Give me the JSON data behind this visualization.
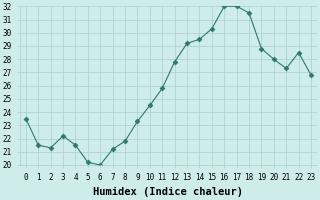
{
  "xlabel": "Humidex (Indice chaleur)",
  "ylabel": "",
  "x": [
    0,
    1,
    2,
    3,
    4,
    5,
    6,
    7,
    8,
    9,
    10,
    11,
    12,
    13,
    14,
    15,
    16,
    17,
    18,
    19,
    20,
    21,
    22,
    23
  ],
  "y": [
    23.5,
    21.5,
    21.3,
    22.2,
    21.5,
    20.2,
    20.0,
    21.2,
    21.8,
    23.3,
    24.5,
    25.8,
    27.8,
    29.2,
    29.5,
    30.3,
    32.0,
    32.0,
    31.5,
    28.8,
    28.0,
    27.3,
    28.5,
    26.8
  ],
  "line_color": "#2d7a6b",
  "marker": "D",
  "marker_size": 2.5,
  "bg_color": "#ceecea",
  "grid_color": "#aacfcc",
  "ylim": [
    20,
    32
  ],
  "yticks": [
    20,
    21,
    22,
    23,
    24,
    25,
    26,
    27,
    28,
    29,
    30,
    31,
    32
  ],
  "xticks": [
    0,
    1,
    2,
    3,
    4,
    5,
    6,
    7,
    8,
    9,
    10,
    11,
    12,
    13,
    14,
    15,
    16,
    17,
    18,
    19,
    20,
    21,
    22,
    23
  ],
  "xtick_labels": [
    "0",
    "1",
    "2",
    "3",
    "4",
    "5",
    "6",
    "7",
    "8",
    "9",
    "10",
    "11",
    "12",
    "13",
    "14",
    "15",
    "16",
    "17",
    "18",
    "19",
    "20",
    "21",
    "22",
    "23"
  ],
  "tick_fontsize": 5.5,
  "xlabel_fontsize": 7.5,
  "xlabel_bold": true
}
